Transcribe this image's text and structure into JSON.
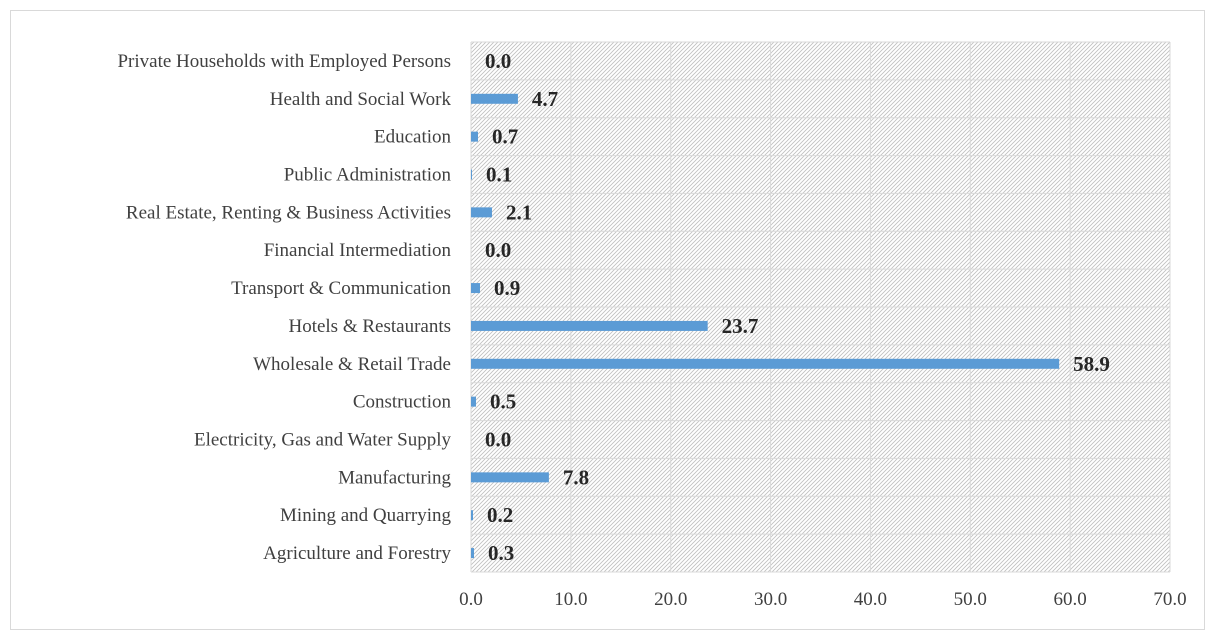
{
  "chart_data": {
    "type": "bar",
    "orientation": "horizontal",
    "categories": [
      "Agriculture and Forestry",
      "Mining and Quarrying",
      "Manufacturing",
      "Electricity, Gas and Water Supply",
      "Construction",
      "Wholesale & Retail Trade",
      "Hotels & Restaurants",
      "Transport & Communication",
      "Financial Intermediation",
      "Real Estate, Renting & Business Activities",
      "Public Administration",
      "Education",
      "Health and Social Work",
      "Private Households with Employed Persons"
    ],
    "values": [
      0.3,
      0.2,
      7.8,
      0.0,
      0.5,
      58.9,
      23.7,
      0.9,
      0.0,
      2.1,
      0.1,
      0.7,
      4.7,
      0.0
    ],
    "data_labels": [
      "0.3",
      "0.2",
      "7.8",
      "0.0",
      "0.5",
      "58.9",
      "23.7",
      "0.9",
      "0.0",
      "2.1",
      "0.1",
      "0.7",
      "4.7",
      "0.0"
    ],
    "xlim": [
      0,
      70
    ],
    "x_ticks": [
      "0.0",
      "10.0",
      "20.0",
      "30.0",
      "40.0",
      "50.0",
      "60.0",
      "70.0"
    ],
    "title": "",
    "xlabel": "",
    "ylabel": "",
    "grid": true,
    "plot_background": "hatched",
    "bar_color": "#5b9bd5",
    "grid_color": "#d9d9d9"
  }
}
